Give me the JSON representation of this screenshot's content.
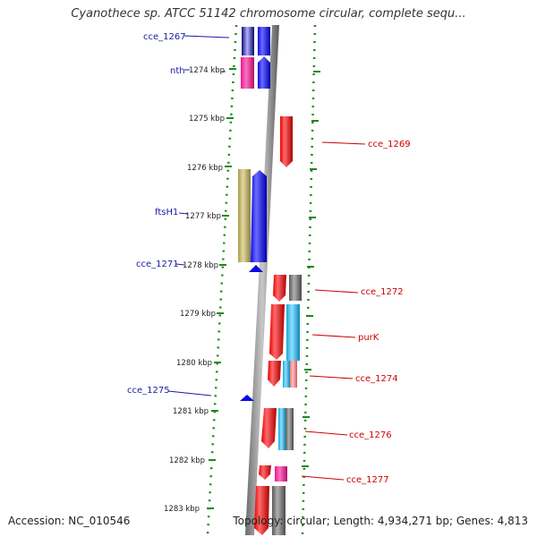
{
  "title": "Cyanothece sp. ATCC 51142 chromosome circular, complete sequ...",
  "accession": "Accession: NC_010546",
  "topology": "Topology: circular; Length: 4,934,271 bp; Genes: 4,813",
  "colors": {
    "blue": "#0a0ae6",
    "red": "#e60000",
    "magenta": "#e8188f",
    "olive": "#b5a95e",
    "gray": "#707070",
    "cyan": "#1ab8e8",
    "pink": "#f07a7a",
    "label_left": "#1a1aa6",
    "label_right": "#cc0000",
    "dots": "#1a8a1a"
  },
  "scale_ticks": [
    "1274 kbp",
    "1275 kbp",
    "1276 kbp",
    "1277 kbp",
    "1278 kbp",
    "1279 kbp",
    "1280 kbp",
    "1281 kbp",
    "1282 kbp",
    "1283 kbp"
  ],
  "gene_labels": {
    "left": [
      "cce_1267",
      "nth",
      "ftsH1",
      "cce_1271",
      "cce_1275"
    ],
    "right": [
      "cce_1269",
      "cce_1272",
      "purK",
      "cce_1274",
      "cce_1276",
      "cce_1277"
    ]
  }
}
